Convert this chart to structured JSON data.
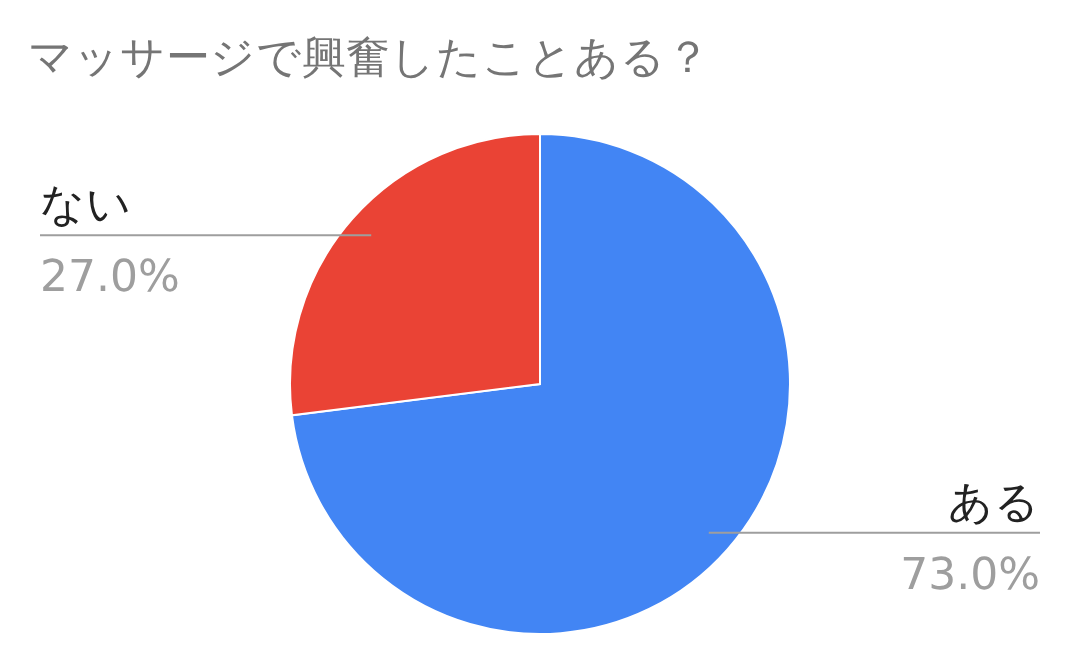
{
  "chart_data": {
    "type": "pie",
    "title": "マッサージで興奮したことある？",
    "categories": [
      "ある",
      "ない"
    ],
    "values": [
      73,
      27
    ],
    "colors": [
      "#4285f4",
      "#ea4335"
    ],
    "value_labels": [
      "73.0%",
      "27.0%"
    ]
  }
}
